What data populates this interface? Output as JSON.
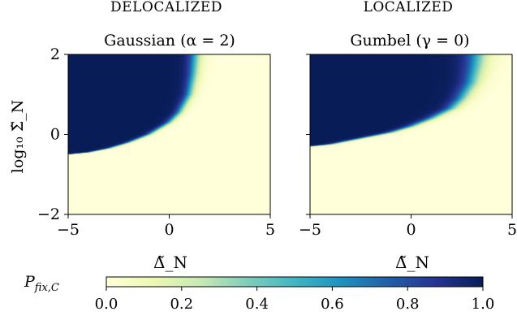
{
  "figure": {
    "colorbar_label": "P_{fix,C}",
    "colorbar_ticks": [
      "0.0",
      "0.2",
      "0.4",
      "0.6",
      "0.8",
      "1.0"
    ],
    "colormap": "YlGnBu",
    "colormap_stops": [
      "#ffffd9",
      "#edf8b1",
      "#c7e9b4",
      "#7fcdbb",
      "#41b6c4",
      "#1d91c0",
      "#225ea8",
      "#253494",
      "#081d58"
    ]
  },
  "chart_data": [
    {
      "type": "heatmap",
      "header": "DELOCALIZED",
      "title": "Gaussian  (α = 2)",
      "xlabel": "Δ̃_N",
      "ylabel": "log₁₀ Σ̃_N",
      "xlim": [
        -5,
        5
      ],
      "ylim": [
        -2,
        2
      ],
      "xticks": [
        "−5",
        "0",
        "5"
      ],
      "yticks": [
        "2",
        "0",
        "−2"
      ],
      "xtick_values": [
        -5,
        0,
        5
      ],
      "ytick_values": [
        2,
        0,
        -2
      ],
      "value_range": [
        0,
        1
      ],
      "boundary": [
        {
          "x": -5.0,
          "y": -0.5
        },
        {
          "x": -4.0,
          "y": -0.45
        },
        {
          "x": -3.0,
          "y": -0.35
        },
        {
          "x": -2.0,
          "y": -0.2
        },
        {
          "x": -1.0,
          "y": 0.0
        },
        {
          "x": 0.0,
          "y": 0.3
        },
        {
          "x": 0.5,
          "y": 0.55
        },
        {
          "x": 1.0,
          "y": 1.0
        },
        {
          "x": 1.2,
          "y": 1.5
        },
        {
          "x": 1.3,
          "y": 2.0
        }
      ],
      "boundary_width": [
        0.08,
        0.2
      ]
    },
    {
      "type": "heatmap",
      "header": "LOCALIZED",
      "title": "Gumbel  (γ = 0)",
      "xlabel": "Δ̃_N",
      "ylabel": "",
      "xlim": [
        -5,
        5
      ],
      "ylim": [
        -2,
        2
      ],
      "xticks": [
        "−5",
        "0",
        "5"
      ],
      "yticks": [],
      "xtick_values": [
        -5,
        0,
        5
      ],
      "ytick_values": [
        2,
        0,
        -2
      ],
      "value_range": [
        0,
        1
      ],
      "boundary": [
        {
          "x": -5.0,
          "y": -0.3
        },
        {
          "x": -4.0,
          "y": -0.25
        },
        {
          "x": -3.0,
          "y": -0.15
        },
        {
          "x": -2.0,
          "y": -0.05
        },
        {
          "x": -1.0,
          "y": 0.05
        },
        {
          "x": 0.0,
          "y": 0.2
        },
        {
          "x": 1.0,
          "y": 0.4
        },
        {
          "x": 2.0,
          "y": 0.65
        },
        {
          "x": 2.5,
          "y": 0.9
        },
        {
          "x": 3.0,
          "y": 1.3
        },
        {
          "x": 3.2,
          "y": 1.7
        },
        {
          "x": 3.3,
          "y": 2.0
        }
      ],
      "boundary_width": [
        0.1,
        0.35
      ]
    }
  ]
}
